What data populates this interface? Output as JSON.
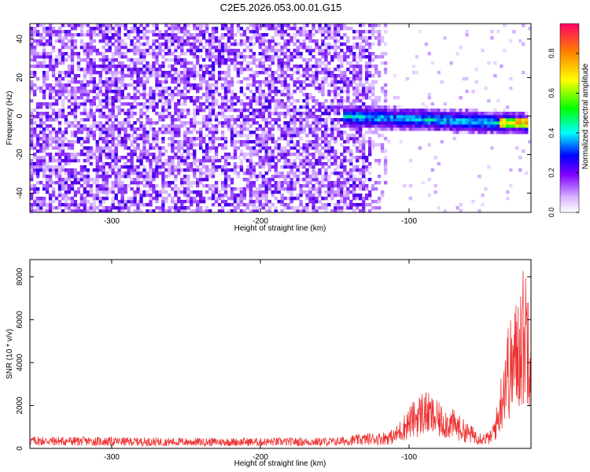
{
  "title": "C2E5.2026.053.00.01.G15",
  "colors": {
    "snr_line": "#ee3333",
    "spectrogram_low": "#e6d2ff",
    "spectrogram_mid": "#7f00ff"
  },
  "chart_data": [
    {
      "type": "heatmap",
      "xlabel": "Height of straight line (km)",
      "ylabel": "Frequency (Hz)",
      "xlim": [
        -355,
        -18
      ],
      "ylim": [
        -50,
        48
      ],
      "x_ticks": [
        -300,
        -200,
        -100
      ],
      "y_ticks": [
        -40,
        -20,
        0,
        20,
        40
      ],
      "colorbar": {
        "label": "Normalized spectral amplitude",
        "range": [
          0.0,
          0.95
        ],
        "ticks": [
          0.0,
          0.2,
          0.4,
          0.6,
          0.8
        ]
      },
      "features": [
        {
          "x_range": [
            -355,
            -125
          ],
          "y_range": [
            -50,
            48
          ],
          "amplitude": 0.08
        },
        {
          "x_range": [
            -125,
            -115
          ],
          "y_range": [
            -50,
            48
          ],
          "amplitude": 0.03
        },
        {
          "x_range": [
            -145,
            -20
          ],
          "y_center_start": 0,
          "y_center_end": -4,
          "y_halfwidth": 6,
          "amplitude": 0.35
        },
        {
          "x_range": [
            -40,
            -20
          ],
          "y_center": -3,
          "amplitude": 0.8
        }
      ]
    },
    {
      "type": "line",
      "xlabel": "Height of straight line (km)",
      "ylabel": "SNR (10 * v/v)",
      "xlim": [
        -355,
        -18
      ],
      "ylim": [
        0,
        8800
      ],
      "x_ticks": [
        -300,
        -200,
        -100
      ],
      "y_ticks": [
        0,
        2000,
        4000,
        6000,
        8000
      ],
      "series": [
        {
          "x": [
            -355,
            -300,
            -250,
            -200,
            -150,
            -125,
            -120,
            -110,
            -100,
            -90,
            -80,
            -70,
            -60,
            -50,
            -45,
            -40,
            -35,
            -30,
            -25,
            -20,
            -18
          ],
          "y": [
            350,
            320,
            300,
            300,
            310,
            450,
            450,
            550,
            1200,
            1700,
            1300,
            1100,
            700,
            450,
            500,
            1400,
            3500,
            3800,
            5000,
            5500,
            5200
          ]
        }
      ]
    }
  ]
}
